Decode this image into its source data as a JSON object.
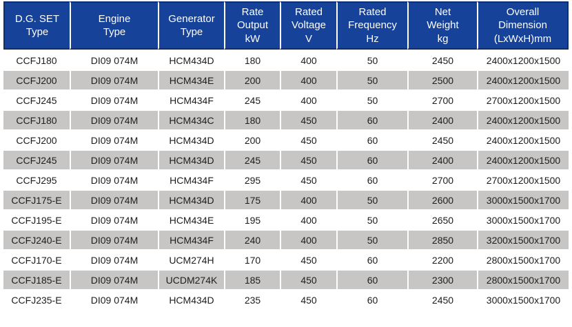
{
  "colors": {
    "header_bg": "#16429a",
    "header_text": "#ffffff",
    "header_outline": "#0d2e6f",
    "row_alt_bg": "#c7c6c4",
    "row_bg": "#ffffff",
    "grid_line": "#ffffff",
    "body_text": "#1d1d1b"
  },
  "chart_data": {
    "type": "table",
    "columns": [
      "D.G. SET\nType",
      "Engine\nType",
      "Generator\nType",
      "Rate\nOutput\nkW",
      "Rated\nVoltage\nV",
      "Rated\nFrequency\nHz",
      "Net\nWeight\nkg",
      "Overall\nDimension\n(LxWxH)mm"
    ],
    "rows": [
      [
        "CCFJ180",
        "DI09 074M",
        "HCM434D",
        "180",
        "400",
        "50",
        "2450",
        "2400x1200x1500"
      ],
      [
        "CCFJ200",
        "DI09 074M",
        "HCM434E",
        "200",
        "400",
        "50",
        "2500",
        "2400x1200x1500"
      ],
      [
        "CCFJ245",
        "DI09 074M",
        "HCM434F",
        "245",
        "400",
        "50",
        "2700",
        "2700x1200x1500"
      ],
      [
        "CCFJ180",
        "DI09 074M",
        "HCM434C",
        "180",
        "450",
        "60",
        "2400",
        "2400x1200x1500"
      ],
      [
        "CCFJ200",
        "DI09 074M",
        "HCM434D",
        "200",
        "450",
        "60",
        "2450",
        "2400x1200x1500"
      ],
      [
        "CCFJ245",
        "DI09 074M",
        "HCM434D",
        "245",
        "450",
        "60",
        "2400",
        "2400x1200x1500"
      ],
      [
        "CCFJ295",
        "DI09 074M",
        "HCM434F",
        "295",
        "450",
        "60",
        "2700",
        "2700x1200x1500"
      ],
      [
        "CCFJ175-E",
        "DI09 074M",
        "HCM434D",
        "175",
        "400",
        "50",
        "2600",
        "3000x1500x1700"
      ],
      [
        "CCFJ195-E",
        "DI09 074M",
        "HCM434E",
        "195",
        "400",
        "50",
        "2650",
        "3000x1500x1700"
      ],
      [
        "CCFJ240-E",
        "DI09 074M",
        "HCM434F",
        "240",
        "400",
        "50",
        "2850",
        "3200x1500x1700"
      ],
      [
        "CCFJ170-E",
        "DI09 074M",
        "UCM274H",
        "170",
        "450",
        "60",
        "2200",
        "2800x1500x1700"
      ],
      [
        "CCFJ185-E",
        "DI09 074M",
        "UCDM274K",
        "185",
        "450",
        "60",
        "2300",
        "2800x1500x1700"
      ],
      [
        "CCFJ235-E",
        "DI09 074M",
        "HCM434D",
        "235",
        "450",
        "60",
        "2450",
        "3000x1500x1700"
      ]
    ]
  }
}
